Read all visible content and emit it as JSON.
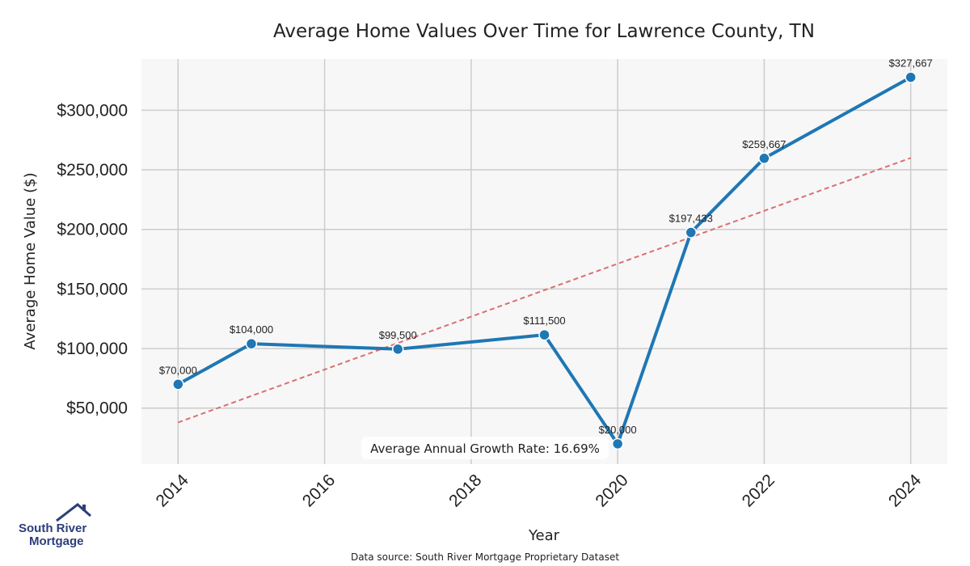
{
  "chart_data": {
    "type": "line",
    "title": "Average Home Values Over Time for Lawrence County, TN",
    "xlabel": "Year",
    "ylabel": "Average Home Value ($)",
    "x": [
      2014,
      2015,
      2017,
      2019,
      2020,
      2021,
      2022,
      2024
    ],
    "series": [
      {
        "values": [
          70000,
          104000,
          99500,
          111500,
          20000,
          197433,
          259667,
          327667
        ]
      }
    ],
    "data_labels": [
      "$70,000",
      "$104,000",
      "$99,500",
      "$111,500",
      "$20,000",
      "$197,433",
      "$259,667",
      "$327,667"
    ],
    "trendline": {
      "style": "dashed",
      "x": [
        2014,
        2024
      ],
      "y": [
        38000,
        260000
      ]
    },
    "xlim": [
      2013.5,
      2024.5
    ],
    "ylim": [
      3000,
      343000
    ],
    "xticks": [
      2014,
      2016,
      2018,
      2020,
      2022,
      2024
    ],
    "xtick_labels": [
      "2014",
      "2016",
      "2018",
      "2020",
      "2022",
      "2024"
    ],
    "yticks": [
      50000,
      100000,
      150000,
      200000,
      250000,
      300000
    ],
    "ytick_labels": [
      "$50,000",
      "$100,000",
      "$150,000",
      "$200,000",
      "$250,000",
      "$300,000"
    ],
    "grid": true,
    "annotation": "Average Annual Growth Rate: 16.69%",
    "colors": {
      "line": "#1f77b4",
      "trend": "#d9706f",
      "plot_bg": "#f7f7f7",
      "grid": "#cccccc"
    }
  },
  "footer": {
    "source": "Data source: South River Mortgage Proprietary Dataset"
  },
  "logo": {
    "line1": "South River",
    "line2": "Mortgage",
    "icon": "house-icon",
    "color": "#2c3e7a"
  }
}
